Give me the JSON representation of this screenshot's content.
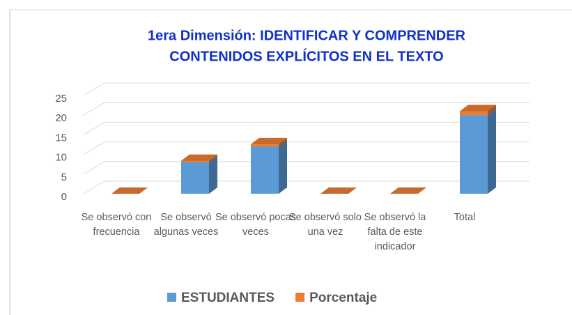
{
  "chart_data": {
    "type": "bar3d_stacked",
    "title": [
      "1era Dimensión: IDENTIFICAR Y COMPRENDER",
      "CONTENIDOS EXPLÍCITOS EN EL TEXTO"
    ],
    "categories": [
      "Se observó con frecuencia",
      "Se observó algunas veces",
      "Se observó pocas veces",
      "Se observó solo una vez",
      "Se observó la falta de este indicador",
      "Total"
    ],
    "series": [
      {
        "name": "ESTUDIANTES",
        "color": "#5b9bd5",
        "values": [
          0,
          8,
          12,
          0,
          0,
          20
        ]
      },
      {
        "name": "Porcentaje",
        "color": "#ed7d31",
        "values": [
          0,
          0.4,
          0.6,
          0,
          0,
          1
        ]
      }
    ],
    "ylim": [
      0,
      25
    ],
    "yticks": [
      0,
      5,
      10,
      15,
      20,
      25
    ],
    "grid": true,
    "legend": "bottom"
  }
}
